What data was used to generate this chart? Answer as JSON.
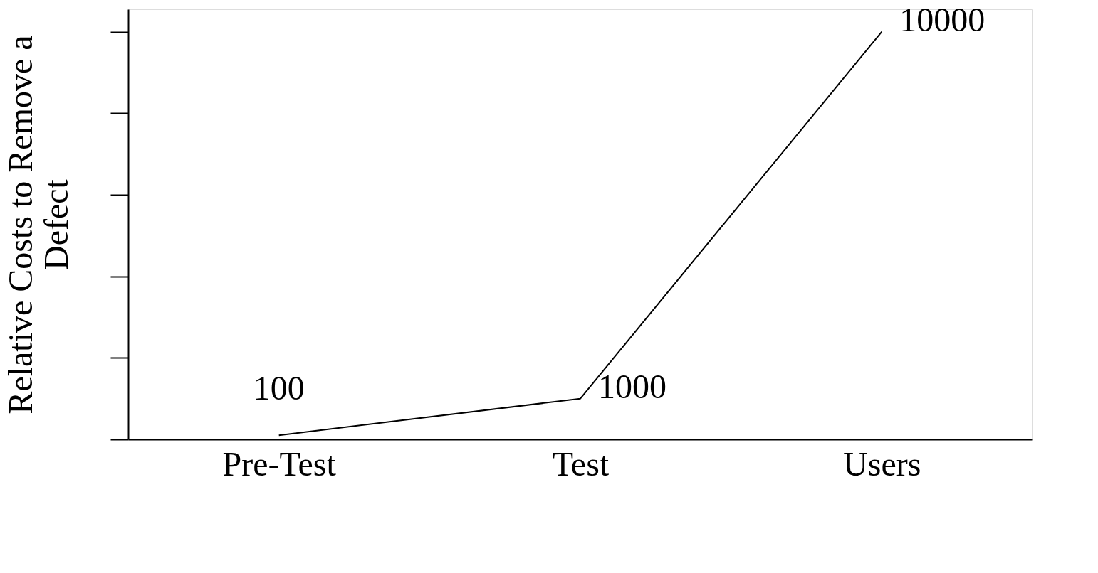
{
  "chart_data": {
    "type": "line",
    "ylabel": "Relative Costs to Remove a Defect",
    "categories": [
      "Pre-Test",
      "Test",
      "Users"
    ],
    "series": [
      {
        "color": "#000000",
        "values": [
          100,
          1000,
          10000
        ]
      }
    ],
    "data_labels": true,
    "ylim": [
      0,
      10550
    ],
    "tick_labels": "x",
    "grid": false,
    "marker": "none"
  }
}
